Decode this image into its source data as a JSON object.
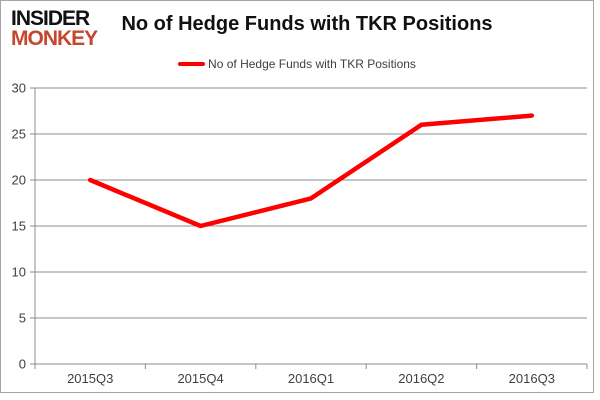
{
  "logo": {
    "line1": "INSIDER",
    "line2": "MONKEY"
  },
  "header": {
    "title": "No of Hedge Funds with TKR Positions"
  },
  "legend": {
    "label": "No of Hedge Funds with TKR Positions"
  },
  "chart_data": {
    "type": "line",
    "title": "No of Hedge Funds with TKR Positions",
    "categories": [
      "2015Q3",
      "2015Q4",
      "2016Q1",
      "2016Q2",
      "2016Q3"
    ],
    "series": [
      {
        "name": "No of Hedge Funds with TKR Positions",
        "values": [
          20,
          15,
          18,
          26,
          27
        ]
      }
    ],
    "ylim": [
      0,
      30
    ],
    "yticks": [
      0,
      5,
      10,
      15,
      20,
      25,
      30
    ],
    "grid": true,
    "legend_position": "top-center"
  },
  "colors": {
    "series_line": "#fe0000",
    "grid_line": "#8c8c8c",
    "axis_line": "#8c8c8c",
    "tick_label": "#404040",
    "title_text": "#111111",
    "legend_text": "#3f3f3f",
    "logo_black": "#111111",
    "logo_orange": "#c7462e",
    "border": "#a6a6a6"
  }
}
